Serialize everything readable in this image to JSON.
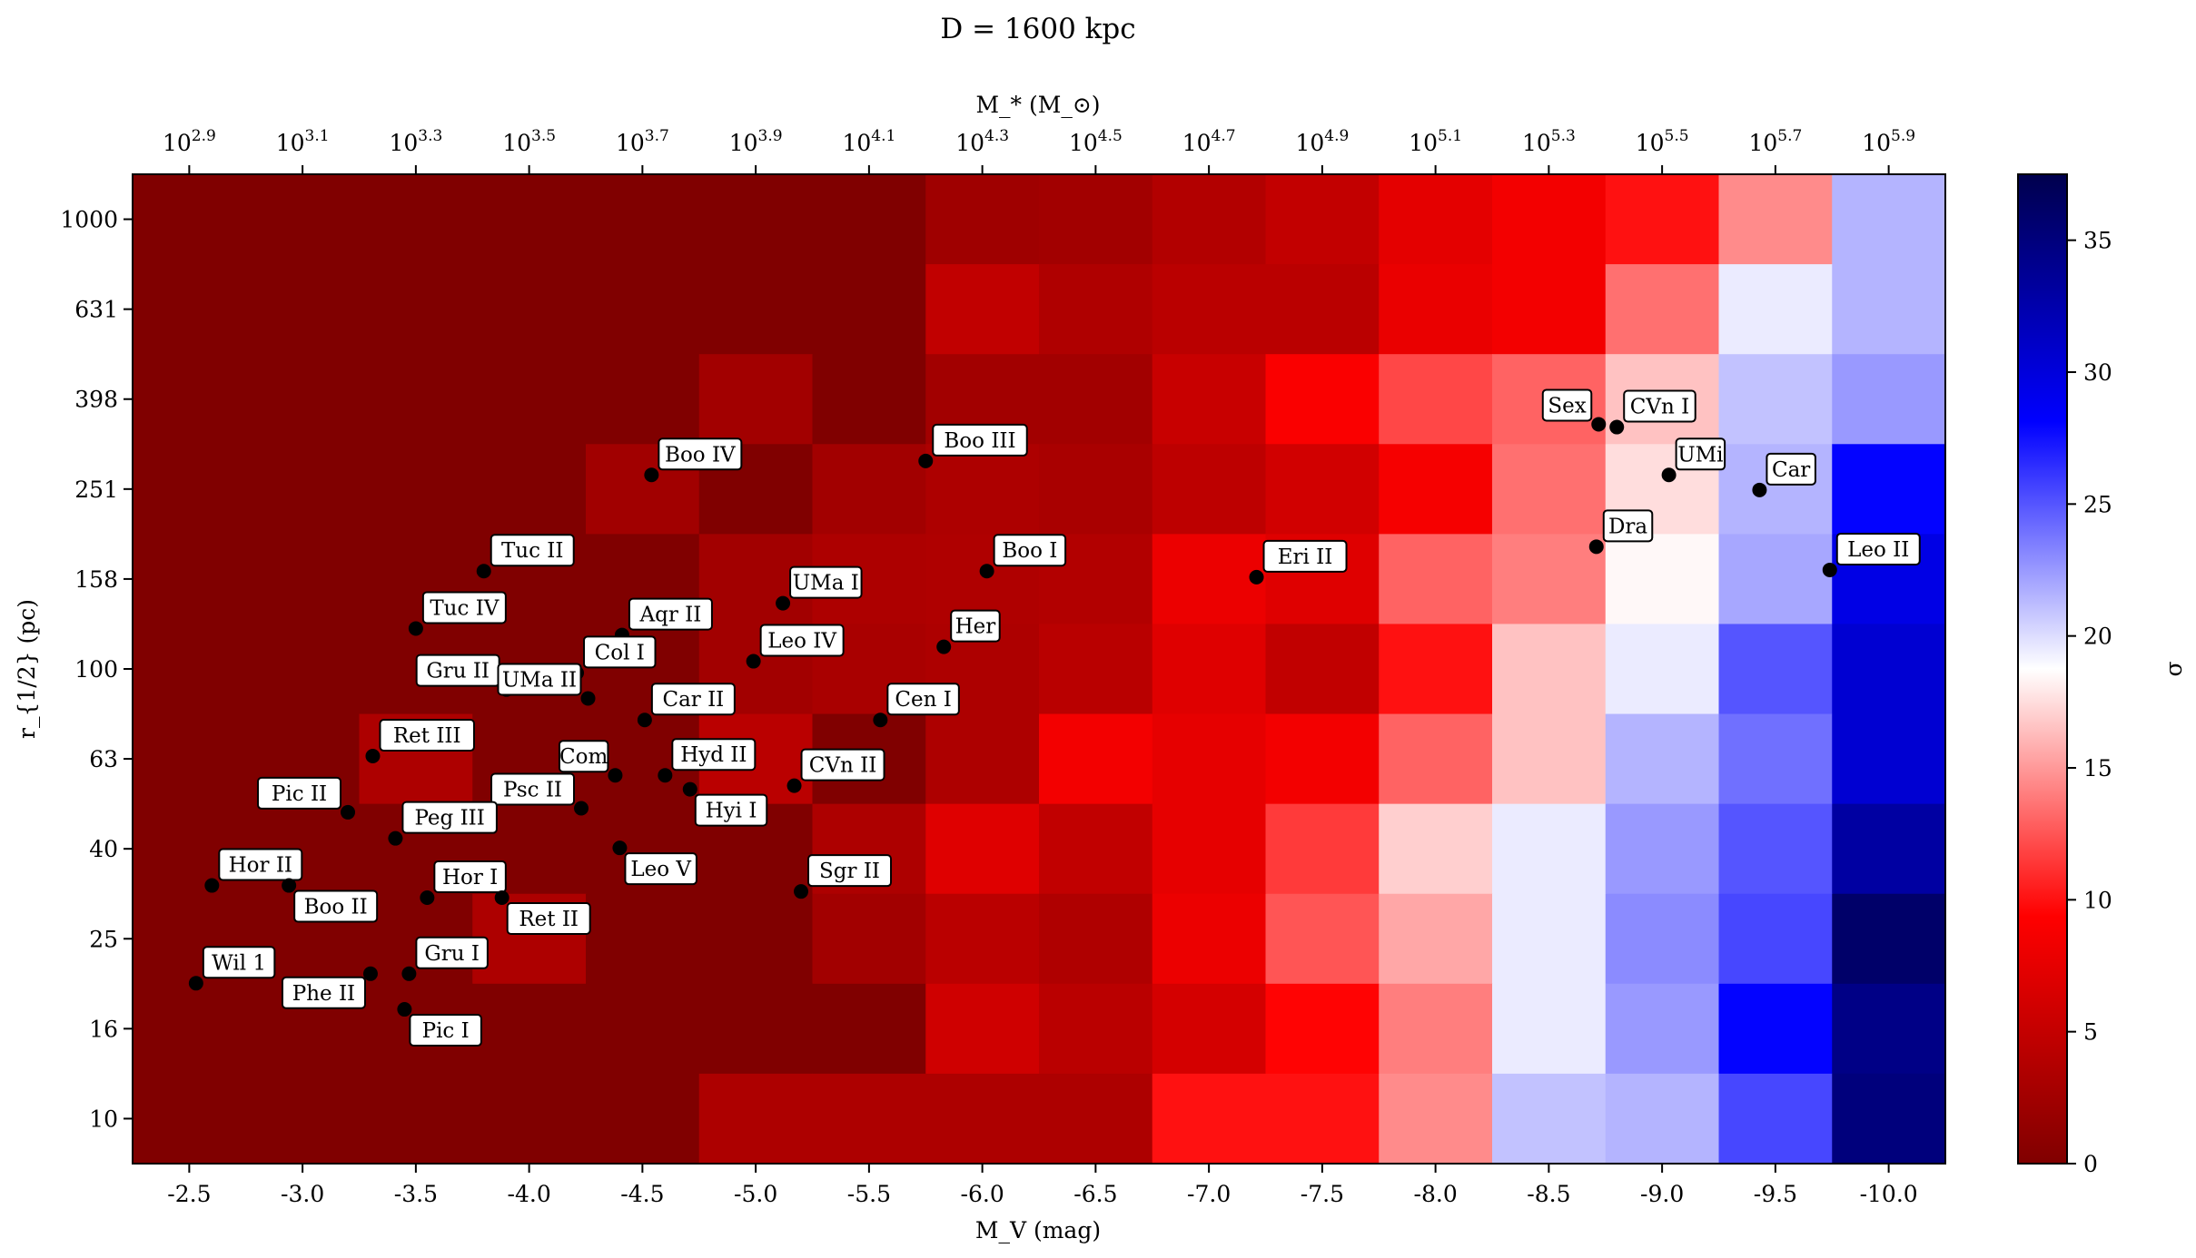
{
  "chart_data": {
    "type": "heatmap",
    "title": "D = 1600 kpc",
    "xlabel": "M_V (mag)",
    "ylabel": "r_{1/2} (pc)",
    "top_xlabel": "M_* (M_⊙)",
    "colorbar_label": "σ",
    "x_range": [
      -2.25,
      -10.25
    ],
    "x_ticks": [
      "-2.5",
      "-3.0",
      "-3.5",
      "-4.0",
      "-4.5",
      "-5.0",
      "-5.5",
      "-6.0",
      "-6.5",
      "-7.0",
      "-7.5",
      "-8.0",
      "-8.5",
      "-9.0",
      "-9.5",
      "-10.0"
    ],
    "top_ticks_mantissa": "10",
    "top_ticks_exponents": [
      "2.9",
      "3.1",
      "3.3",
      "3.5",
      "3.7",
      "3.9",
      "4.1",
      "4.3",
      "4.5",
      "4.7",
      "4.9",
      "5.1",
      "5.3",
      "5.5",
      "5.7",
      "5.9"
    ],
    "y_ticks": [
      "10",
      "16",
      "25",
      "40",
      "63",
      "100",
      "158",
      "251",
      "398",
      "631",
      "1000"
    ],
    "colorbar_ticks": [
      "0",
      "5",
      "10",
      "15",
      "20",
      "25",
      "30",
      "35"
    ],
    "colorbar_range": [
      0,
      37.5
    ],
    "colormap": "seismic_r",
    "grid": false,
    "x_bin_centers": [
      -2.5,
      -3.0,
      -3.5,
      -4.0,
      -4.5,
      -5.0,
      -5.5,
      -6.0,
      -6.5,
      -7.0,
      -7.5,
      -8.0,
      -8.5,
      -9.0,
      -9.5,
      -10.0
    ],
    "y_bin_centers": [
      1000,
      631,
      398,
      251,
      158,
      100,
      63,
      40,
      25,
      16,
      10
    ],
    "values": [
      [
        0,
        0,
        0,
        0,
        0,
        0,
        0,
        2.3,
        2.5,
        3.7,
        4.9,
        7.4,
        8.5,
        10.0,
        14.5,
        21.5
      ],
      [
        0,
        0,
        0,
        0,
        0,
        0,
        0,
        4.8,
        3.5,
        4.3,
        4.3,
        7.8,
        8.5,
        13.5,
        19.5,
        21.5
      ],
      [
        0,
        0,
        0,
        0,
        0,
        2.5,
        0,
        2.5,
        2.5,
        5.3,
        9.0,
        12.0,
        13.0,
        16.5,
        21.0,
        22.5
      ],
      [
        0,
        0,
        0,
        0,
        2.4,
        0,
        2.5,
        3.3,
        3.0,
        4.5,
        6.0,
        8.7,
        13.5,
        17.5,
        21.5,
        28.0
      ],
      [
        0,
        0,
        0,
        0,
        0,
        2.5,
        3.3,
        3.5,
        3.7,
        8.0,
        7.0,
        13.0,
        14.0,
        18.5,
        22.0,
        29.5
      ],
      [
        0,
        0,
        0,
        0,
        0,
        2.5,
        3.0,
        3.3,
        4.2,
        7.0,
        4.8,
        10.0,
        16.5,
        19.5,
        25.0,
        30.5
      ],
      [
        0,
        0,
        3.3,
        0,
        0,
        4.3,
        0,
        3.3,
        8.5,
        7.5,
        8.5,
        13.0,
        16.5,
        21.5,
        24.0,
        30.5
      ],
      [
        0,
        0,
        0,
        0,
        0,
        0,
        3.3,
        7.0,
        4.8,
        7.5,
        11.5,
        17.0,
        19.5,
        22.5,
        25.0,
        33.0
      ],
      [
        0,
        0,
        0,
        3.3,
        0,
        0,
        2.5,
        4.3,
        3.5,
        8.0,
        12.5,
        15.5,
        19.5,
        23.0,
        25.5,
        36.0
      ],
      [
        0,
        0,
        0,
        0,
        0,
        0,
        0,
        5.8,
        4.3,
        6.2,
        9.5,
        14.0,
        19.5,
        22.5,
        28.0,
        34.5
      ],
      [
        0,
        0,
        0,
        0,
        0,
        3.3,
        3.3,
        3.3,
        3.3,
        10.0,
        10.0,
        14.5,
        21.0,
        21.5,
        25.5,
        35.0
      ]
    ],
    "points": [
      {
        "name": "Boo IV",
        "x": -4.54,
        "y": 270
      },
      {
        "name": "Boo III",
        "x": -5.75,
        "y": 290
      },
      {
        "name": "Tuc II",
        "x": -3.8,
        "y": 165
      },
      {
        "name": "UMa I",
        "x": -5.12,
        "y": 140
      },
      {
        "name": "Boo I",
        "x": -6.02,
        "y": 165
      },
      {
        "name": "Eri II",
        "x": -7.21,
        "y": 160
      },
      {
        "name": "Tuc IV",
        "x": -3.5,
        "y": 123
      },
      {
        "name": "Aqr II",
        "x": -4.41,
        "y": 119
      },
      {
        "name": "Her",
        "x": -5.83,
        "y": 112
      },
      {
        "name": "Gru II",
        "x": -3.9,
        "y": 90
      },
      {
        "name": "Col I",
        "x": -4.21,
        "y": 98
      },
      {
        "name": "Leo IV",
        "x": -4.99,
        "y": 104
      },
      {
        "name": "UMa II",
        "x": -4.26,
        "y": 86
      },
      {
        "name": "Car II",
        "x": -4.51,
        "y": 77
      },
      {
        "name": "Cen I",
        "x": -5.55,
        "y": 77
      },
      {
        "name": "Ret III",
        "x": -3.31,
        "y": 64
      },
      {
        "name": "Com",
        "x": -4.38,
        "y": 58
      },
      {
        "name": "Hyd II",
        "x": -4.6,
        "y": 58
      },
      {
        "name": "CVn II",
        "x": -5.17,
        "y": 55
      },
      {
        "name": "Psc II",
        "x": -4.23,
        "y": 49
      },
      {
        "name": "Hyi I",
        "x": -4.71,
        "y": 54
      },
      {
        "name": "Pic II",
        "x": -3.2,
        "y": 48
      },
      {
        "name": "Peg III",
        "x": -3.41,
        "y": 42
      },
      {
        "name": "Leo V",
        "x": -4.4,
        "y": 40
      },
      {
        "name": "Hor II",
        "x": -2.6,
        "y": 33
      },
      {
        "name": "Boo II",
        "x": -2.94,
        "y": 33
      },
      {
        "name": "Hor I",
        "x": -3.55,
        "y": 31
      },
      {
        "name": "Ret II",
        "x": -3.88,
        "y": 31
      },
      {
        "name": "Sgr II",
        "x": -5.2,
        "y": 32
      },
      {
        "name": "Wil 1",
        "x": -2.53,
        "y": 20
      },
      {
        "name": "Phe II",
        "x": -3.3,
        "y": 21
      },
      {
        "name": "Gru I",
        "x": -3.47,
        "y": 21
      },
      {
        "name": "Pic I",
        "x": -3.45,
        "y": 17.5
      },
      {
        "name": "Sex",
        "x": -8.72,
        "y": 350
      },
      {
        "name": "CVn I",
        "x": -8.8,
        "y": 345
      },
      {
        "name": "UMi",
        "x": -9.03,
        "y": 270
      },
      {
        "name": "Car",
        "x": -9.43,
        "y": 250
      },
      {
        "name": "Dra",
        "x": -8.71,
        "y": 187
      },
      {
        "name": "Leo II",
        "x": -9.74,
        "y": 166
      }
    ]
  }
}
